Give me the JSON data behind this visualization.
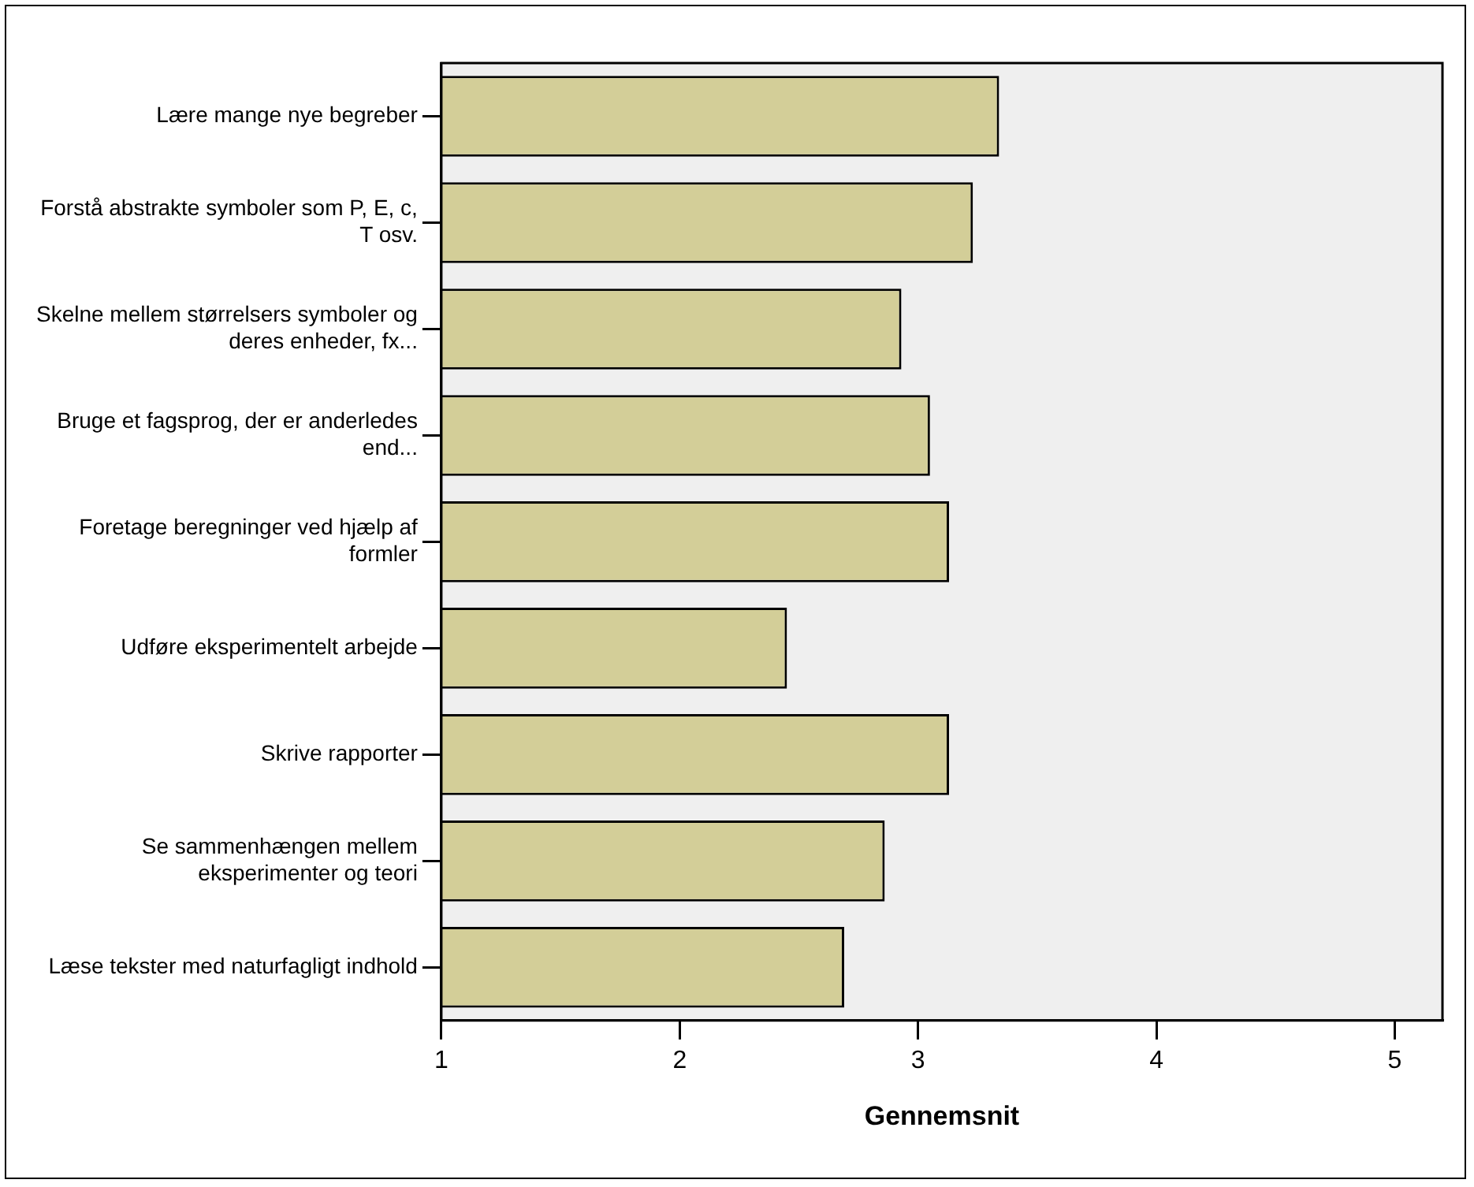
{
  "chart_data": {
    "type": "bar",
    "orientation": "horizontal",
    "xlabel": "Gennemsnit",
    "categories": [
      "Lære mange nye begreber",
      "Forstå abstrakte symboler som P, E, c, T osv.",
      "Skelne mellem størrelsers symboler og deres enheder, fx...",
      "Bruge et fagsprog, der er anderledes end...",
      "Foretage beregninger ved hjælp af formler",
      "Udføre eksperimentelt arbejde",
      "Skrive rapporter",
      "Se sammenhængen mellem eksperimenter og teori",
      "Læse tekster med naturfagligt indhold"
    ],
    "values": [
      3.34,
      3.23,
      2.93,
      3.05,
      3.13,
      2.45,
      3.13,
      2.86,
      2.69
    ],
    "color": "#d3ce98",
    "xlim": [
      1,
      5.2
    ],
    "xticks": [
      1,
      2,
      3,
      4,
      5
    ],
    "grid": false,
    "legend": false
  }
}
